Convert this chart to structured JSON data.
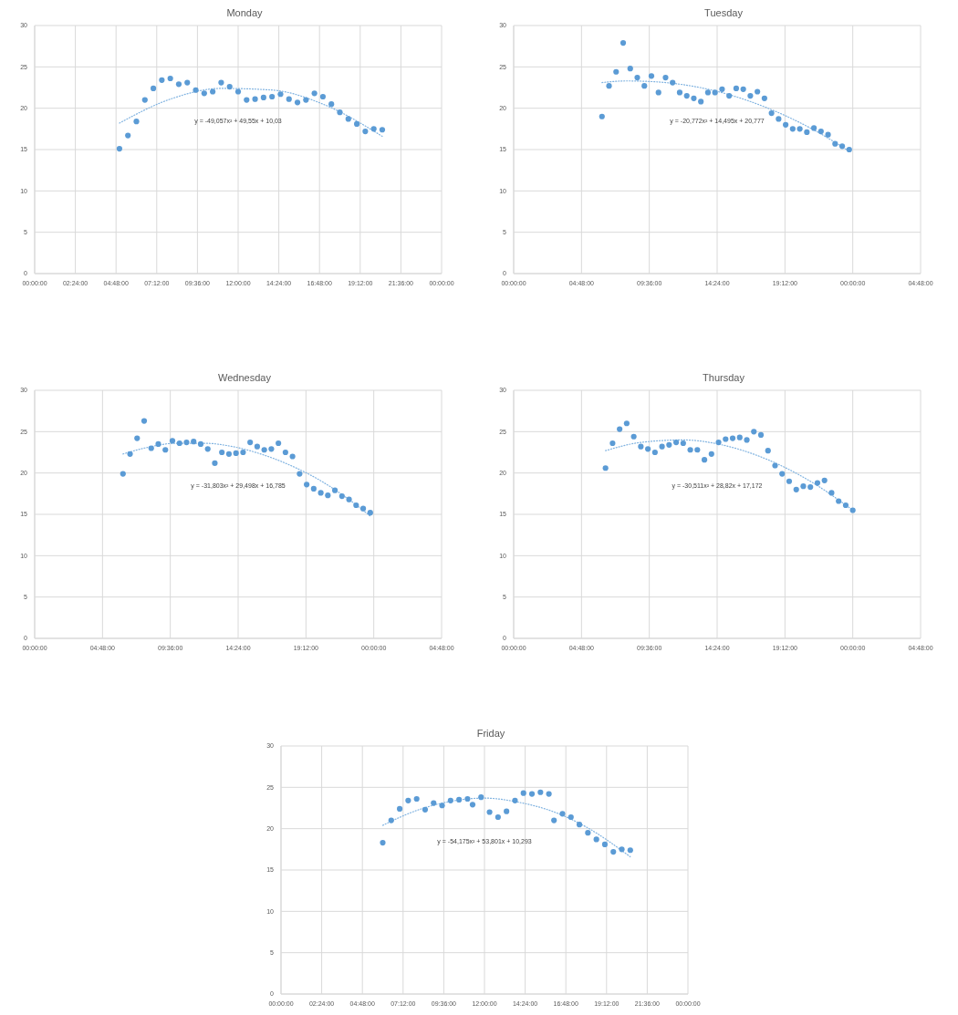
{
  "chart_data": [
    {
      "type": "scatter",
      "title": "Monday",
      "xlim": [
        "--01-01T00:00",
        "--01-02T00:00"
      ],
      "xticks": [
        {
          "value": "--01-01T00:00",
          "label": "00:00:00"
        },
        {
          "value": "--01-01T02:24",
          "label": "02:24:00"
        },
        {
          "value": "--01-01T04:48",
          "label": "04:48:00"
        },
        {
          "value": "--01-01T07:12",
          "label": "07:12:00"
        },
        {
          "value": "--01-01T09:36",
          "label": "09:36:00"
        },
        {
          "value": "--01-01T12:00",
          "label": "12:00:00"
        },
        {
          "value": "--01-01T14:24",
          "label": "14:24:00"
        },
        {
          "value": "--01-01T16:48",
          "label": "16:48:00"
        },
        {
          "value": "--01-01T19:12",
          "label": "19:12:00"
        },
        {
          "value": "--01-01T21:36",
          "label": "21:36:00"
        },
        {
          "value": "--01-02T00:00",
          "label": "00:00:00"
        }
      ],
      "ylim": [
        0,
        30
      ],
      "yticks": [
        0,
        5,
        10,
        15,
        20,
        25,
        30
      ],
      "grid": true,
      "annotations": [
        "y = -49,057x² + 49,55x + 10,03"
      ],
      "series": [
        {
          "type": "scatter",
          "color": "#5b9bd5",
          "marker": "circle",
          "x": [
            "--01-01T05:00",
            "--01-01T05:30",
            "--01-01T06:00",
            "--01-01T06:30",
            "--01-01T07:00",
            "--01-01T07:30",
            "--01-01T08:00",
            "--01-01T08:30",
            "--01-01T09:00",
            "--01-01T09:30",
            "--01-01T10:00",
            "--01-01T10:30",
            "--01-01T11:00",
            "--01-01T11:30",
            "--01-01T12:00",
            "--01-01T12:30",
            "--01-01T13:00",
            "--01-01T13:30",
            "--01-01T14:00",
            "--01-01T14:30",
            "--01-01T15:00",
            "--01-01T15:30",
            "--01-01T16:00",
            "--01-01T16:30",
            "--01-01T17:00",
            "--01-01T17:30",
            "--01-01T18:00",
            "--01-01T18:30",
            "--01-01T19:00",
            "--01-01T19:30",
            "--01-01T20:00",
            "--01-01T20:30"
          ],
          "values": [
            15.1,
            16.7,
            18.4,
            21.0,
            22.4,
            23.4,
            23.6,
            22.9,
            23.1,
            22.2,
            21.8,
            22.0,
            23.1,
            22.6,
            22.0,
            21.0,
            21.1,
            21.3,
            21.4,
            21.7,
            21.1,
            20.7,
            21.0,
            21.8,
            21.4,
            20.5,
            19.5,
            18.7,
            18.1,
            17.2,
            17.5,
            17.4
          ]
        },
        {
          "type": "line",
          "color": "#7fb2e0",
          "marker": "none",
          "line_style": "dotted",
          "x": [
            "--01-01T05:00",
            "--01-01T08:00",
            "--01-01T11:00",
            "--01-01T14:00",
            "--01-01T17:00",
            "--01-01T20:30"
          ],
          "values": [
            18.2,
            21.1,
            22.4,
            22.2,
            20.5,
            16.6
          ]
        }
      ]
    },
    {
      "type": "scatter",
      "title": "Tuesday",
      "xlim": [
        "--01-01T00:00",
        "--01-02T04:48"
      ],
      "xticks": [
        {
          "value": "--01-01T00:00",
          "label": "00:00:00"
        },
        {
          "value": "--01-01T04:48",
          "label": "04:48:00"
        },
        {
          "value": "--01-01T09:36",
          "label": "09:36:00"
        },
        {
          "value": "--01-01T14:24",
          "label": "14:24:00"
        },
        {
          "value": "--01-01T19:12",
          "label": "19:12:00"
        },
        {
          "value": "--01-02T00:00",
          "label": "00:00:00"
        },
        {
          "value": "--01-02T04:48",
          "label": "04:48:00"
        }
      ],
      "ylim": [
        0,
        30
      ],
      "yticks": [
        0,
        5,
        10,
        15,
        20,
        25,
        30
      ],
      "grid": true,
      "annotations": [
        "y = -20,772x² + 14,495x + 20,777"
      ],
      "series": [
        {
          "type": "scatter",
          "color": "#5b9bd5",
          "marker": "circle",
          "x": [
            "--01-01T06:15",
            "--01-01T06:45",
            "--01-01T07:15",
            "--01-01T07:45",
            "--01-01T08:15",
            "--01-01T08:45",
            "--01-01T09:15",
            "--01-01T09:45",
            "--01-01T10:15",
            "--01-01T10:45",
            "--01-01T11:15",
            "--01-01T11:45",
            "--01-01T12:15",
            "--01-01T12:45",
            "--01-01T13:15",
            "--01-01T13:45",
            "--01-01T14:15",
            "--01-01T14:45",
            "--01-01T15:15",
            "--01-01T15:45",
            "--01-01T16:15",
            "--01-01T16:45",
            "--01-01T17:15",
            "--01-01T17:45",
            "--01-01T18:15",
            "--01-01T18:45",
            "--01-01T19:15",
            "--01-01T19:45",
            "--01-01T20:15",
            "--01-01T20:45",
            "--01-01T21:15",
            "--01-01T21:45",
            "--01-01T22:15",
            "--01-01T22:45",
            "--01-01T23:15",
            "--01-01T23:45"
          ],
          "values": [
            19.0,
            22.7,
            24.4,
            27.9,
            24.8,
            23.7,
            22.7,
            23.9,
            21.9,
            23.7,
            23.1,
            21.9,
            21.5,
            21.2,
            20.8,
            21.9,
            21.9,
            22.3,
            21.5,
            22.4,
            22.3,
            21.5,
            22.0,
            21.2,
            19.4,
            18.7,
            18.0,
            17.5,
            17.5,
            17.1,
            17.6,
            17.2,
            16.8,
            15.7,
            15.4,
            15.0
          ]
        },
        {
          "type": "line",
          "color": "#7fb2e0",
          "marker": "none",
          "line_style": "dotted",
          "x": [
            "--01-01T06:15",
            "--01-01T08:00",
            "--01-01T10:00",
            "--01-01T14:00",
            "--01-01T18:00",
            "--01-01T21:00",
            "--01-01T23:45"
          ],
          "values": [
            23.1,
            23.3,
            23.2,
            22.2,
            20.0,
            17.6,
            14.8
          ]
        }
      ]
    },
    {
      "type": "scatter",
      "title": "Wednesday",
      "xlim": [
        "--01-01T00:00",
        "--01-02T04:48"
      ],
      "xticks": [
        {
          "value": "--01-01T00:00",
          "label": "00:00:00"
        },
        {
          "value": "--01-01T04:48",
          "label": "04:48:00"
        },
        {
          "value": "--01-01T09:36",
          "label": "09:36:00"
        },
        {
          "value": "--01-01T14:24",
          "label": "14:24:00"
        },
        {
          "value": "--01-01T19:12",
          "label": "19:12:00"
        },
        {
          "value": "--01-02T00:00",
          "label": "00:00:00"
        },
        {
          "value": "--01-02T04:48",
          "label": "04:48:00"
        }
      ],
      "ylim": [
        0,
        30
      ],
      "yticks": [
        0,
        5,
        10,
        15,
        20,
        25,
        30
      ],
      "grid": true,
      "annotations": [
        "y = -31,803x² + 29,498x + 16,785"
      ],
      "series": [
        {
          "type": "scatter",
          "color": "#5b9bd5",
          "marker": "circle",
          "x": [
            "--01-01T06:15",
            "--01-01T06:45",
            "--01-01T07:15",
            "--01-01T07:45",
            "--01-01T08:15",
            "--01-01T08:45",
            "--01-01T09:15",
            "--01-01T09:45",
            "--01-01T10:15",
            "--01-01T10:45",
            "--01-01T11:15",
            "--01-01T11:45",
            "--01-01T12:15",
            "--01-01T12:45",
            "--01-01T13:15",
            "--01-01T13:45",
            "--01-01T14:15",
            "--01-01T14:45",
            "--01-01T15:15",
            "--01-01T15:45",
            "--01-01T16:15",
            "--01-01T16:45",
            "--01-01T17:15",
            "--01-01T17:45",
            "--01-01T18:15",
            "--01-01T18:45",
            "--01-01T19:15",
            "--01-01T19:45",
            "--01-01T20:15",
            "--01-01T20:45",
            "--01-01T21:15",
            "--01-01T21:45",
            "--01-01T22:15",
            "--01-01T22:45",
            "--01-01T23:15",
            "--01-01T23:45"
          ],
          "values": [
            19.9,
            22.3,
            24.2,
            26.3,
            23.0,
            23.5,
            22.8,
            23.9,
            23.6,
            23.7,
            23.8,
            23.5,
            22.9,
            21.2,
            22.5,
            22.3,
            22.4,
            22.5,
            23.7,
            23.2,
            22.8,
            22.9,
            23.6,
            22.5,
            22.0,
            19.9,
            18.6,
            18.1,
            17.6,
            17.3,
            17.9,
            17.2,
            16.8,
            16.1,
            15.7,
            15.2
          ]
        },
        {
          "type": "line",
          "color": "#7fb2e0",
          "marker": "none",
          "line_style": "dotted",
          "x": [
            "--01-01T06:15",
            "--01-01T08:00",
            "--01-01T10:00",
            "--01-01T12:00",
            "--01-01T14:00",
            "--01-01T16:00",
            "--01-01T18:00",
            "--01-01T20:00",
            "--01-01T22:00",
            "--01-01T23:45"
          ],
          "values": [
            22.3,
            23.1,
            23.6,
            23.6,
            23.2,
            22.3,
            21.0,
            19.3,
            17.1,
            14.8
          ]
        }
      ]
    },
    {
      "type": "scatter",
      "title": "Thursday",
      "xlim": [
        "--01-01T00:00",
        "--01-02T04:48"
      ],
      "xticks": [
        {
          "value": "--01-01T00:00",
          "label": "00:00:00"
        },
        {
          "value": "--01-01T04:48",
          "label": "04:48:00"
        },
        {
          "value": "--01-01T09:36",
          "label": "09:36:00"
        },
        {
          "value": "--01-01T14:24",
          "label": "14:24:00"
        },
        {
          "value": "--01-01T19:12",
          "label": "19:12:00"
        },
        {
          "value": "--01-02T00:00",
          "label": "00:00:00"
        },
        {
          "value": "--01-02T04:48",
          "label": "04:48:00"
        }
      ],
      "ylim": [
        0,
        30
      ],
      "yticks": [
        0,
        5,
        10,
        15,
        20,
        25,
        30
      ],
      "grid": true,
      "annotations": [
        "y = -30,511x² + 28,82x + 17,172"
      ],
      "series": [
        {
          "type": "scatter",
          "color": "#5b9bd5",
          "marker": "circle",
          "x": [
            "--01-01T06:30",
            "--01-01T07:00",
            "--01-01T07:30",
            "--01-01T08:00",
            "--01-01T08:30",
            "--01-01T09:00",
            "--01-01T09:30",
            "--01-01T10:00",
            "--01-01T10:30",
            "--01-01T11:00",
            "--01-01T11:30",
            "--01-01T12:00",
            "--01-01T12:30",
            "--01-01T13:00",
            "--01-01T13:30",
            "--01-01T14:00",
            "--01-01T14:30",
            "--01-01T15:00",
            "--01-01T15:30",
            "--01-01T16:00",
            "--01-01T16:30",
            "--01-01T17:00",
            "--01-01T17:30",
            "--01-01T18:00",
            "--01-01T18:30",
            "--01-01T19:00",
            "--01-01T19:30",
            "--01-01T20:00",
            "--01-01T20:30",
            "--01-01T21:00",
            "--01-01T21:30",
            "--01-01T22:00",
            "--01-01T22:30",
            "--01-01T23:00",
            "--01-01T23:30",
            "--01-02T00:00"
          ],
          "values": [
            20.6,
            23.6,
            25.3,
            26.0,
            24.4,
            23.2,
            22.9,
            22.5,
            23.2,
            23.4,
            23.7,
            23.6,
            22.8,
            22.8,
            21.6,
            22.3,
            23.7,
            24.1,
            24.2,
            24.3,
            24.0,
            25.0,
            24.6,
            22.7,
            20.9,
            19.9,
            19.0,
            18.0,
            18.4,
            18.3,
            18.8,
            19.1,
            17.6,
            16.6,
            16.1,
            15.5
          ]
        },
        {
          "type": "line",
          "color": "#7fb2e0",
          "marker": "none",
          "line_style": "dotted",
          "x": [
            "--01-01T06:30",
            "--01-01T09:00",
            "--01-01T12:00",
            "--01-01T15:00",
            "--01-01T18:00",
            "--01-01T21:00",
            "--01-02T00:00"
          ],
          "values": [
            22.7,
            23.7,
            24.0,
            23.3,
            21.6,
            19.0,
            15.5
          ]
        }
      ]
    },
    {
      "type": "scatter",
      "title": "Friday",
      "xlim": [
        "--01-01T00:00",
        "--01-02T00:00"
      ],
      "xticks": [
        {
          "value": "--01-01T00:00",
          "label": "00:00:00"
        },
        {
          "value": "--01-01T02:24",
          "label": "02:24:00"
        },
        {
          "value": "--01-01T04:48",
          "label": "04:48:00"
        },
        {
          "value": "--01-01T07:12",
          "label": "07:12:00"
        },
        {
          "value": "--01-01T09:36",
          "label": "09:36:00"
        },
        {
          "value": "--01-01T12:00",
          "label": "12:00:00"
        },
        {
          "value": "--01-01T14:24",
          "label": "14:24:00"
        },
        {
          "value": "--01-01T16:48",
          "label": "16:48:00"
        },
        {
          "value": "--01-01T19:12",
          "label": "19:12:00"
        },
        {
          "value": "--01-01T21:36",
          "label": "21:36:00"
        },
        {
          "value": "--01-02T00:00",
          "label": "00:00:00"
        }
      ],
      "ylim": [
        0,
        30
      ],
      "yticks": [
        0,
        5,
        10,
        15,
        20,
        25,
        30
      ],
      "grid": true,
      "annotations": [
        "y = -54,175x² + 53,801x + 10,293"
      ],
      "series": [
        {
          "type": "scatter",
          "color": "#5b9bd5",
          "marker": "circle",
          "x": [
            "--01-01T06:00",
            "--01-01T06:30",
            "--01-01T07:00",
            "--01-01T07:30",
            "--01-01T08:00",
            "--01-01T08:30",
            "--01-01T09:00",
            "--01-01T09:30",
            "--01-01T10:00",
            "--01-01T10:30",
            "--01-01T11:00",
            "--01-01T11:18",
            "--01-01T11:48",
            "--01-01T12:18",
            "--01-01T12:48",
            "--01-01T13:18",
            "--01-01T13:48",
            "--01-01T14:18",
            "--01-01T14:48",
            "--01-01T15:18",
            "--01-01T15:48",
            "--01-01T16:06",
            "--01-01T16:36",
            "--01-01T17:06",
            "--01-01T17:36",
            "--01-01T18:06",
            "--01-01T18:36",
            "--01-01T19:06",
            "--01-01T19:36",
            "--01-01T20:06",
            "--01-01T20:36"
          ],
          "values": [
            18.3,
            21.0,
            22.4,
            23.4,
            23.6,
            22.3,
            23.1,
            22.8,
            23.4,
            23.5,
            23.6,
            22.9,
            23.8,
            22.0,
            21.4,
            22.1,
            23.4,
            24.3,
            24.2,
            24.4,
            24.2,
            21.0,
            21.8,
            21.4,
            20.5,
            19.5,
            18.7,
            18.1,
            17.2,
            17.5,
            17.4
          ]
        },
        {
          "type": "line",
          "color": "#7fb2e0",
          "marker": "none",
          "line_style": "dotted",
          "x": [
            "--01-01T06:00",
            "--01-01T08:00",
            "--01-01T10:00",
            "--01-01T12:00",
            "--01-01T14:00",
            "--01-01T16:00",
            "--01-01T18:00",
            "--01-01T20:36"
          ],
          "values": [
            20.4,
            22.2,
            23.3,
            23.7,
            23.2,
            22.1,
            20.2,
            16.6
          ]
        }
      ]
    }
  ]
}
